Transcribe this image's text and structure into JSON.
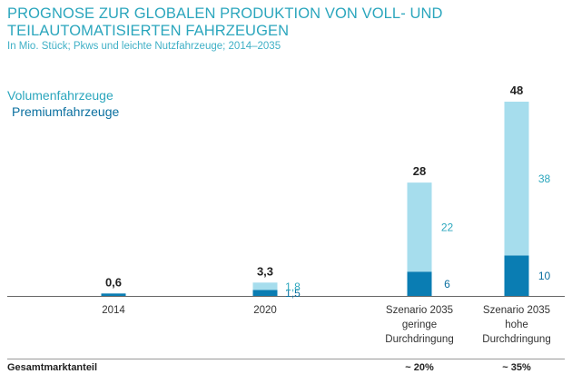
{
  "title": "PROGNOSE ZUR GLOBALEN PRODUKTION VON VOLL- UND TEILAUTOMATISIERTEN FAHRZEUGEN",
  "subtitle": "In Mio. Stück; Pkws und leichte Nutzfahrzeuge; 2014–2035",
  "legend": {
    "volume": "Volumenfahrzeuge",
    "premium": "Premiumfahrzeuge"
  },
  "footer": {
    "label": "Gesamtmarktanteil",
    "shares": [
      "",
      "",
      "~ 20%",
      "~ 35%"
    ]
  },
  "colors": {
    "volume": "#a6dded",
    "premium": "#0a7db3",
    "volume_text": "#2ba6bd",
    "premium_text": "#0a6f9f"
  },
  "chart_data": {
    "type": "bar",
    "stacked": true,
    "categories": [
      [
        "2014"
      ],
      [
        "2020"
      ],
      [
        "Szenario 2035",
        "geringe",
        "Durchdringung"
      ],
      [
        "Szenario 2035",
        "hohe",
        "Durchdringung"
      ]
    ],
    "series": [
      {
        "name": "Premiumfahrzeuge",
        "values": [
          0.6,
          1.5,
          6,
          10
        ],
        "labels": [
          "",
          "1,5",
          "6",
          "10"
        ]
      },
      {
        "name": "Volumenfahrzeuge",
        "values": [
          0,
          1.8,
          22,
          38
        ],
        "labels": [
          "",
          "1,8",
          "22",
          "38"
        ]
      }
    ],
    "totals": [
      0.6,
      3.3,
      28,
      48
    ],
    "total_labels": [
      "0,6",
      "3,3",
      "28",
      "48"
    ],
    "ylim": [
      0,
      48
    ]
  }
}
